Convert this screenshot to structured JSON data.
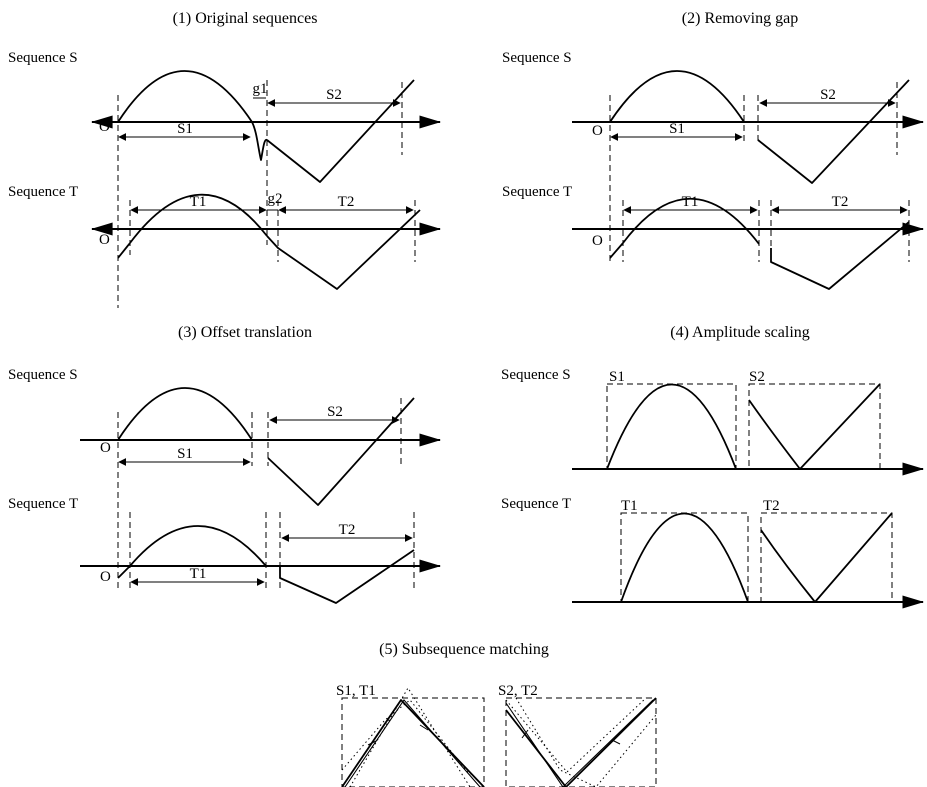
{
  "panels": {
    "p1": {
      "title": "(1) Original sequences",
      "seq_s": "Sequence S",
      "seq_t": "Sequence T",
      "origin": "O",
      "s1": "S1",
      "s2": "S2",
      "g1": "g1",
      "t1": "T1",
      "t2": "T2",
      "g2": "g2"
    },
    "p2": {
      "title": "(2) Removing gap",
      "seq_s": "Sequence S",
      "seq_t": "Sequence T",
      "origin": "O",
      "s1": "S1",
      "s2": "S2",
      "t1": "T1",
      "t2": "T2"
    },
    "p3": {
      "title": "(3) Offset translation",
      "seq_s": "Sequence S",
      "seq_t": "Sequence T",
      "origin": "O",
      "s1": "S1",
      "s2": "S2",
      "t1": "T1",
      "t2": "T2"
    },
    "p4": {
      "title": "(4) Amplitude scaling",
      "seq_s": "Sequence S",
      "seq_t": "Sequence T",
      "s1": "S1",
      "s2": "S2",
      "t1": "T1",
      "t2": "T2"
    },
    "p5": {
      "title": "(5) Subsequence matching",
      "label1": "S1, T1",
      "label2": "S2, T2"
    }
  }
}
